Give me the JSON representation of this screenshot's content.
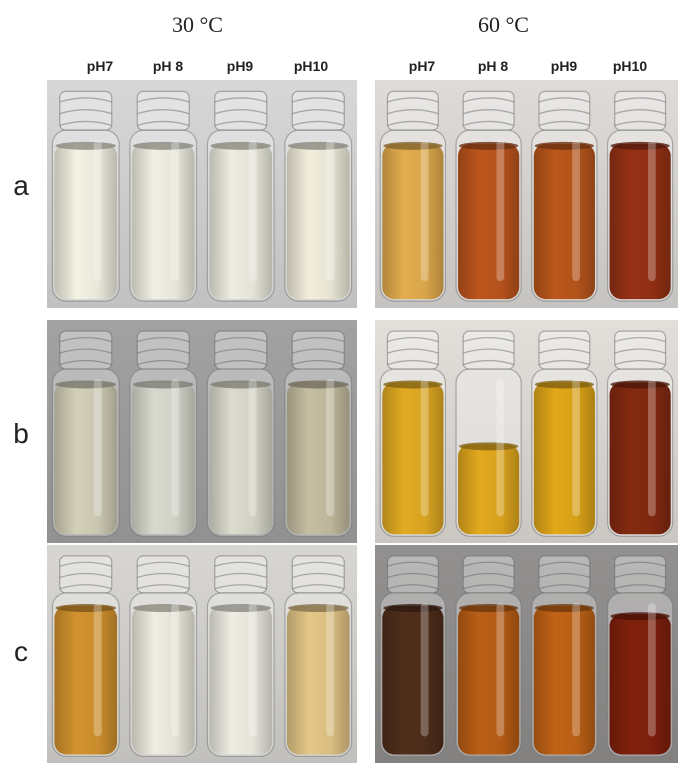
{
  "header": {
    "left_temp": "30 °C",
    "right_temp": "60 °C"
  },
  "ph_labels": {
    "left": [
      "pH7",
      "pH 8",
      "pH9",
      "pH10"
    ],
    "right": [
      "pH7",
      "pH 8",
      "pH9",
      "pH10"
    ]
  },
  "rows": [
    "a",
    "b",
    "c"
  ],
  "panels": {
    "a_30": {
      "bg": "#cfcfcf",
      "liquid": [
        "#e8e6d8",
        "#e6e5d8",
        "#e2e2d6",
        "#e6e3d2"
      ],
      "fill": [
        0.92,
        0.92,
        0.92,
        0.92
      ]
    },
    "a_60": {
      "bg": "#d5d3d0",
      "liquid": [
        "#d8a54a",
        "#b4511c",
        "#b2531a",
        "#8f2f14"
      ],
      "fill": [
        0.92,
        0.92,
        0.92,
        0.92
      ]
    },
    "b_30": {
      "bg": "#9c9c9c",
      "liquid": [
        "#c9c6b0",
        "#cfd0c4",
        "#d1d1c4",
        "#bdb59a"
      ],
      "fill": [
        0.92,
        0.92,
        0.92,
        0.92
      ]
    },
    "b_60": {
      "bg": "#d9d6d2",
      "liquid": [
        "#d7a321",
        "#d8a11d",
        "#d7a018",
        "#7f2810"
      ],
      "fill": [
        0.92,
        0.55,
        0.92,
        0.92
      ]
    },
    "c_30": {
      "bg": "#d0ceca",
      "liquid": [
        "#c98c2c",
        "#e4e2d6",
        "#e3e2d8",
        "#d9bd80"
      ],
      "fill": [
        0.92,
        0.92,
        0.92,
        0.92
      ]
    },
    "c_60": {
      "bg": "#8d8b8a",
      "liquid": [
        "#4c2c1a",
        "#b25a15",
        "#b85e15",
        "#7b1f0c"
      ],
      "fill": [
        0.92,
        0.92,
        0.92,
        0.87
      ]
    }
  }
}
